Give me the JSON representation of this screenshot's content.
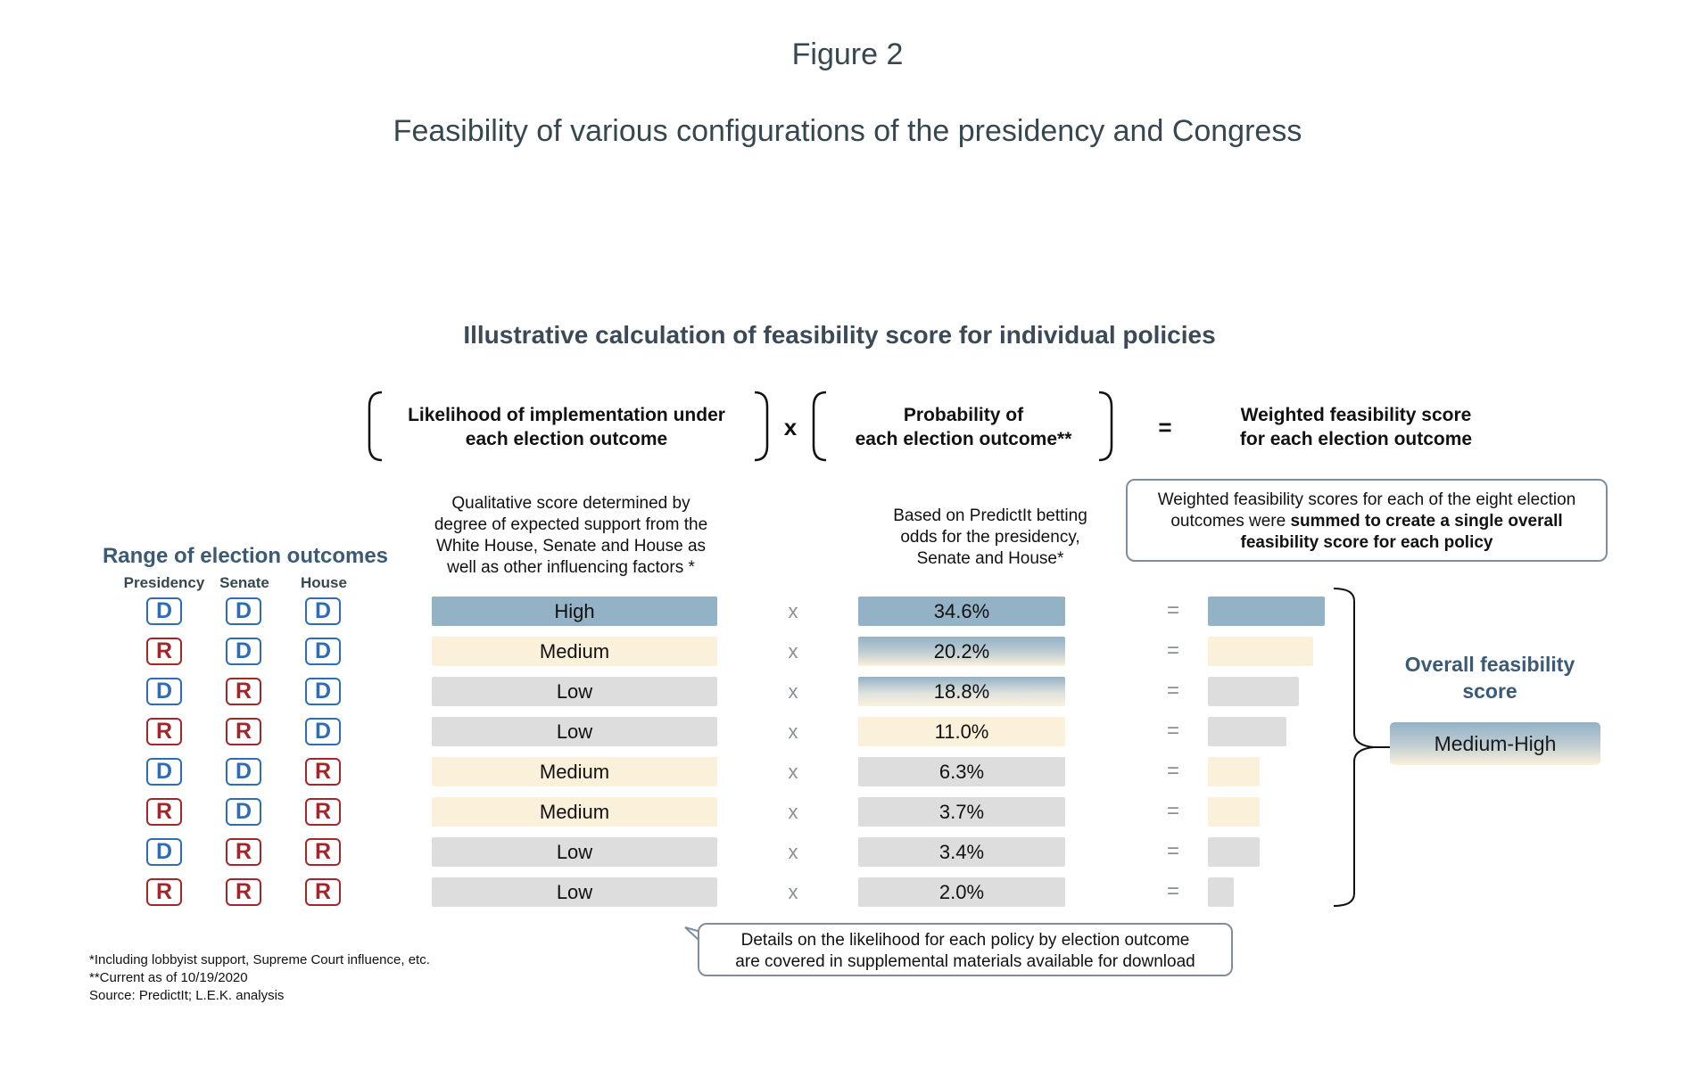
{
  "figure_label": "Figure 2",
  "figure_title": "Feasibility of various configurations of the presidency and Congress",
  "diagram_title": "Illustrative calculation of feasibility score for individual policies",
  "formula": {
    "term1": [
      "Likelihood of implementation under",
      "each election outcome"
    ],
    "operator1": "x",
    "term2": [
      "Probability of",
      "each election outcome**"
    ],
    "operator2": "=",
    "result": [
      "Weighted feasibility score",
      "for each election outcome"
    ]
  },
  "descriptions": {
    "likelihood": [
      "Qualitative score determined by",
      "degree of expected support from the",
      "White House, Senate and House as",
      "well as other influencing factors *"
    ],
    "probability": [
      "Based on PredictIt betting",
      "odds for the presidency,",
      "Senate and House*"
    ],
    "weighted_callout": {
      "line1": "Weighted feasibility scores for each of the eight election",
      "line2_plain": "outcomes were ",
      "line2_bold": "summed to create a single overall",
      "line3_bold": "feasibility score for each policy"
    }
  },
  "range_title": "Range of election outcomes",
  "column_headers": [
    "Presidency",
    "Senate",
    "House"
  ],
  "row_operators": {
    "times": "x",
    "equals": "="
  },
  "rows": [
    {
      "presidency": "D",
      "senate": "D",
      "house": "D",
      "likelihood": "High",
      "likelihood_level": "high",
      "probability": 34.6,
      "probability_label": "34.6%",
      "probability_level": "high",
      "weighted": 1.0
    },
    {
      "presidency": "R",
      "senate": "D",
      "house": "D",
      "likelihood": "Medium",
      "likelihood_level": "medium",
      "probability": 20.2,
      "probability_label": "20.2%",
      "probability_level": "medium-high",
      "weighted": 0.9
    },
    {
      "presidency": "D",
      "senate": "R",
      "house": "D",
      "likelihood": "Low",
      "likelihood_level": "low",
      "probability": 18.8,
      "probability_label": "18.8%",
      "probability_level": "medium-low",
      "weighted": 0.78
    },
    {
      "presidency": "R",
      "senate": "R",
      "house": "D",
      "likelihood": "Low",
      "likelihood_level": "low",
      "probability": 11.0,
      "probability_label": "11.0%",
      "probability_level": "medium",
      "weighted": 0.67
    },
    {
      "presidency": "D",
      "senate": "D",
      "house": "R",
      "likelihood": "Medium",
      "likelihood_level": "medium",
      "probability": 6.3,
      "probability_label": "6.3%",
      "probability_level": "low",
      "weighted": 0.44
    },
    {
      "presidency": "R",
      "senate": "D",
      "house": "R",
      "likelihood": "Medium",
      "likelihood_level": "medium",
      "probability": 3.7,
      "probability_label": "3.7%",
      "probability_level": "low",
      "weighted": 0.44
    },
    {
      "presidency": "D",
      "senate": "R",
      "house": "R",
      "likelihood": "Low",
      "likelihood_level": "low",
      "probability": 3.4,
      "probability_label": "3.4%",
      "probability_level": "low",
      "weighted": 0.44
    },
    {
      "presidency": "R",
      "senate": "R",
      "house": "R",
      "likelihood": "Low",
      "likelihood_level": "low",
      "probability": 2.0,
      "probability_label": "2.0%",
      "probability_level": "low",
      "weighted": 0.22
    }
  ],
  "overall": {
    "title": [
      "Overall feasibility",
      "score"
    ],
    "value": "Medium-High",
    "level": "medium-high"
  },
  "details_callout": [
    "Details on the likelihood for each policy by election outcome",
    "are covered in supplemental materials available for download"
  ],
  "footnotes": [
    "*Including lobbyist support, Supreme Court influence, etc.",
    "**Current as of 10/19/2020",
    "Source: PredictIt; L.E.K. analysis"
  ],
  "colors": {
    "democrat": "#2e6db6",
    "republican": "#a3272a",
    "high": "#94b2c6",
    "medium": "#fbf1db",
    "low": "#dddddd",
    "heading": "#3b5a75"
  }
}
